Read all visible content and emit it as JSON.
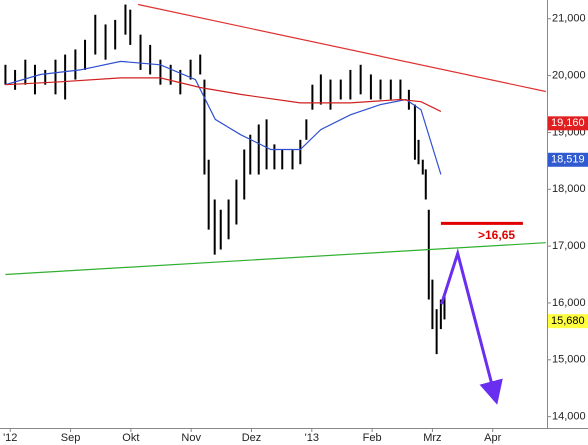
{
  "chart_data": {
    "type": "ohlc",
    "xlim": [
      -0.17,
      8.9
    ],
    "ylim": [
      13800,
      21330
    ],
    "xticks": [
      {
        "value": 0,
        "label": "'12"
      },
      {
        "value": 1,
        "label": "Sep"
      },
      {
        "value": 2,
        "label": "Okt"
      },
      {
        "value": 3,
        "label": "Nov"
      },
      {
        "value": 4,
        "label": "Dez"
      },
      {
        "value": 5,
        "label": "'13"
      },
      {
        "value": 6,
        "label": "Feb"
      },
      {
        "value": 7,
        "label": "Mrz"
      },
      {
        "value": 8,
        "label": "Apr"
      }
    ],
    "yticks": [
      {
        "value": 14000,
        "label": "14,000"
      },
      {
        "value": 15000,
        "label": "15,000"
      },
      {
        "value": 16000,
        "label": "16,000"
      },
      {
        "value": 17000,
        "label": "17,000"
      },
      {
        "value": 18000,
        "label": "18,000"
      },
      {
        "value": 19000,
        "label": "19,000"
      },
      {
        "value": 20000,
        "label": "20,000"
      },
      {
        "value": 21000,
        "label": "21,000"
      }
    ],
    "bars": {
      "color": "#000000",
      "x": [
        -0.08,
        0.08,
        0.25,
        0.41,
        0.58,
        0.75,
        0.91,
        1.08,
        1.24,
        1.41,
        1.58,
        1.74,
        1.91,
        1.99,
        2.16,
        2.32,
        2.49,
        2.66,
        2.82,
        2.99,
        3.15,
        3.22,
        3.29,
        3.39,
        3.49,
        3.62,
        3.75,
        3.88,
        3.98,
        4.12,
        4.25,
        4.38,
        4.51,
        4.68,
        4.81,
        4.91,
        5.01,
        5.15,
        5.31,
        5.48,
        5.64,
        5.81,
        5.98,
        6.14,
        6.31,
        6.47,
        6.61,
        6.71,
        6.77,
        6.84,
        6.89,
        6.94,
        7.0,
        7.07,
        7.14,
        7.2
      ],
      "high": [
        20190,
        20100,
        20280,
        20190,
        20100,
        20280,
        20370,
        20460,
        20630,
        21070,
        20900,
        20980,
        21250,
        21160,
        20720,
        20540,
        20280,
        20190,
        20100,
        20280,
        20370,
        19930,
        18520,
        17820,
        17640,
        17820,
        18170,
        18700,
        18960,
        19140,
        19230,
        18790,
        18700,
        18700,
        18870,
        19230,
        19840,
        20020,
        19930,
        19930,
        20100,
        20190,
        20020,
        19930,
        19930,
        19930,
        19750,
        19490,
        18870,
        18520,
        18350,
        17640,
        16410,
        15890,
        16060,
        16150
      ],
      "low": [
        19840,
        19750,
        19840,
        19670,
        19840,
        19670,
        19580,
        19930,
        20100,
        20370,
        20280,
        20460,
        20720,
        20540,
        20100,
        20020,
        19840,
        19840,
        19670,
        19930,
        20020,
        18260,
        17290,
        16850,
        16940,
        17120,
        17380,
        17820,
        18260,
        18260,
        18350,
        18350,
        18350,
        18350,
        18440,
        18870,
        19400,
        19490,
        19400,
        19580,
        19580,
        19670,
        19580,
        19580,
        19580,
        19580,
        19400,
        18520,
        18440,
        18260,
        17820,
        16060,
        15540,
        15100,
        15540,
        15710
      ]
    },
    "lines": [
      {
        "color": "#3050d0",
        "x": [
          -0.08,
          0.5,
          1.16,
          1.83,
          2.49,
          3.07,
          3.4,
          3.82,
          4.32,
          4.81,
          5.15,
          5.64,
          6.14,
          6.56,
          6.81,
          7.14
        ],
        "values": [
          19840,
          20020,
          20100,
          20250,
          20190,
          19930,
          19230,
          18960,
          18700,
          18700,
          19050,
          19310,
          19490,
          19580,
          19400,
          18260
        ]
      },
      {
        "color": "#d02020",
        "x": [
          -0.08,
          0.83,
          1.83,
          2.49,
          3.15,
          3.82,
          4.81,
          5.64,
          6.47,
          6.81,
          7.14
        ],
        "values": [
          19840,
          19890,
          19960,
          19960,
          19790,
          19670,
          19520,
          19520,
          19580,
          19540,
          19370
        ]
      },
      {
        "color": "#e03030",
        "x": [
          2.12,
          8.88
        ],
        "values": [
          21250,
          19720
        ]
      },
      {
        "color": "#30b030",
        "x": [
          -0.08,
          8.88
        ],
        "values": [
          16500,
          17060
        ]
      },
      {
        "color": "#e00000",
        "x": [
          7.14,
          8.5
        ],
        "values": [
          17400,
          17400
        ]
      },
      {
        "color": "#6a2ef0",
        "x": [
          7.15,
          7.42,
          8.05
        ],
        "values": [
          15980,
          16870,
          14310
        ]
      }
    ],
    "annotation": ">16,65",
    "price_labels": [
      {
        "value": 19160,
        "label": "19,160",
        "color": "#e02020"
      },
      {
        "value": 18519,
        "label": "18,519",
        "color": "#2f5ad0"
      },
      {
        "value": 15680,
        "label": "15,680",
        "color": "#ffff40"
      }
    ]
  }
}
